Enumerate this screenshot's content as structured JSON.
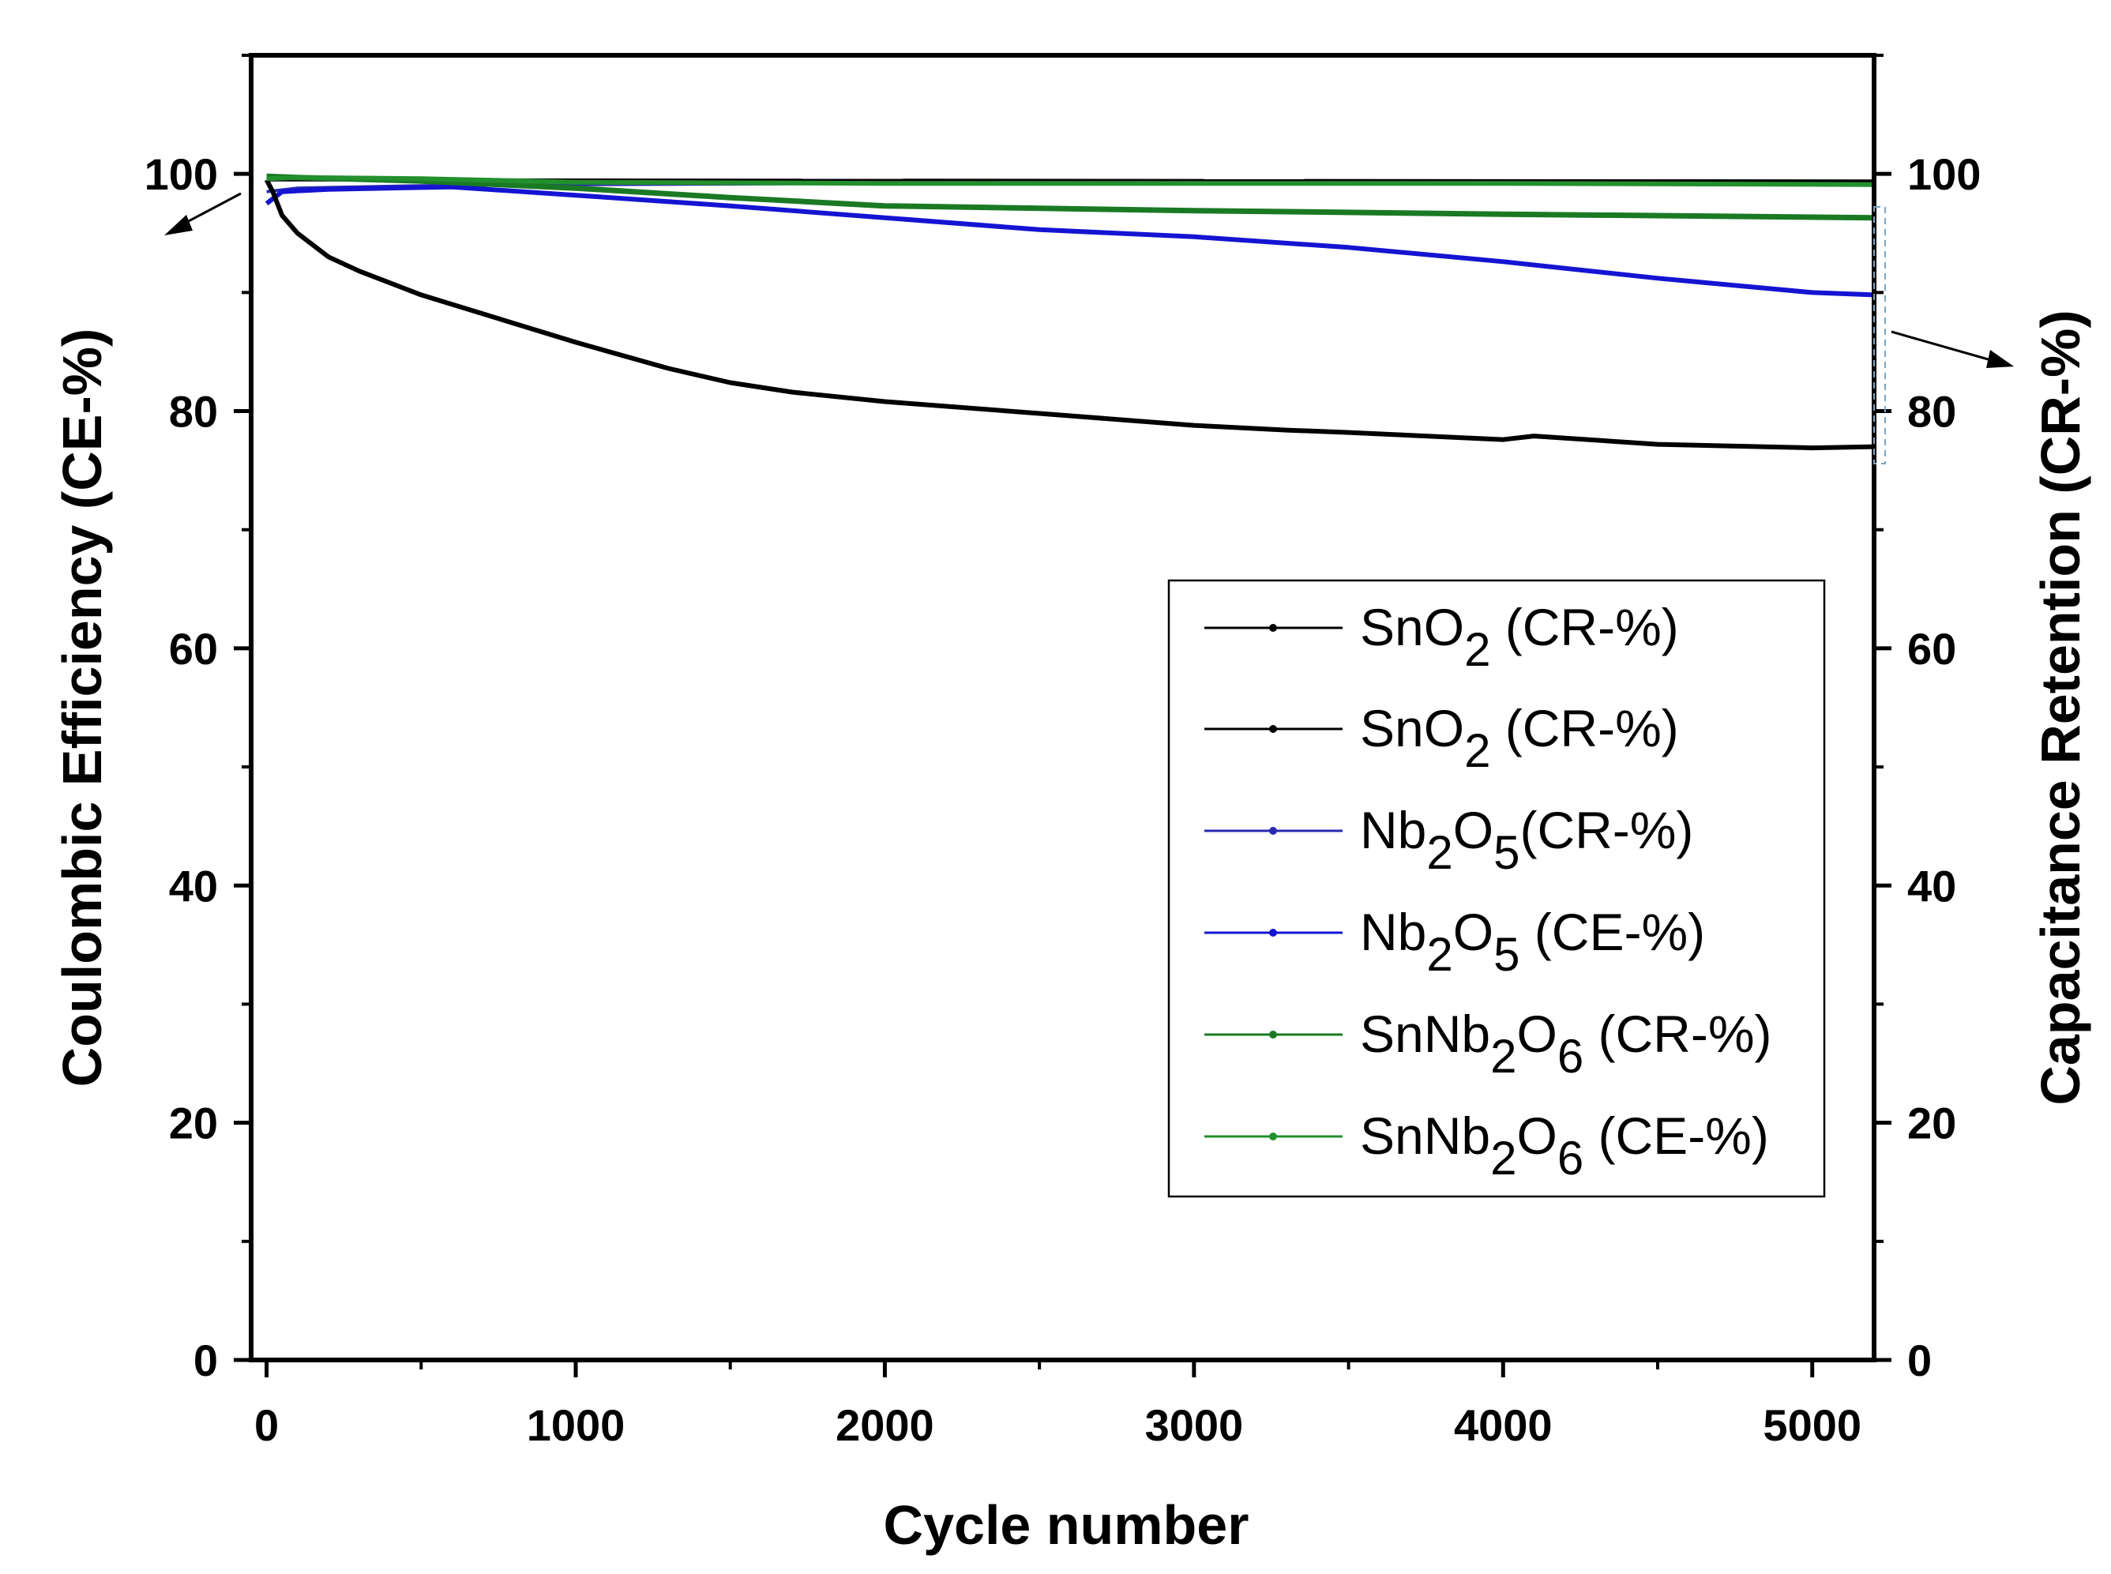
{
  "chart_data": {
    "type": "line",
    "xlabel": "Cycle number",
    "ylabel_left": "Coulombic Efficiency (CE-%)",
    "ylabel_right": "Capacitance Retention (CR-%)",
    "xlim": [
      -50,
      5200
    ],
    "ylim": [
      0,
      110
    ],
    "x_ticks": [
      0,
      1000,
      2000,
      3000,
      4000,
      5000
    ],
    "y_ticks": [
      0,
      20,
      40,
      60,
      80,
      100
    ],
    "legend_position": "center-right",
    "series": [
      {
        "name": "SnO2 (CR-%)",
        "legend": {
          "pre": "SnO",
          "sub1": "2",
          "mid": "",
          "sub2": "",
          "post": " (CR-%)"
        },
        "color": "#000000",
        "width": 4,
        "x": [
          0,
          5200
        ],
        "y": [
          99.5,
          99.4
        ]
      },
      {
        "name": "SnO2 (CR-%)",
        "legend": {
          "pre": "SnO",
          "sub1": "2",
          "mid": "",
          "sub2": "",
          "post": " (CR-%)"
        },
        "color": "#000000",
        "width": 6,
        "x": [
          0,
          20,
          50,
          100,
          200,
          300,
          500,
          700,
          1000,
          1300,
          1500,
          1700,
          2000,
          2500,
          3000,
          3300,
          3500,
          4000,
          4100,
          4500,
          5000,
          5200
        ],
        "y": [
          99.5,
          98.5,
          96.5,
          95,
          93,
          91.8,
          89.8,
          88.2,
          85.8,
          83.6,
          82.4,
          81.6,
          80.8,
          79.8,
          78.8,
          78.4,
          78.2,
          77.6,
          77.9,
          77.2,
          76.9,
          77
        ]
      },
      {
        "name": "Nb2O5(CR-%)",
        "legend": {
          "pre": "Nb",
          "sub1": "2",
          "mid": "O",
          "sub2": "5",
          "post": "(CR-%)"
        },
        "color": "#2a2ab0",
        "width": 4,
        "x": [
          0,
          100,
          500,
          1000,
          2000,
          3000,
          4000,
          5200
        ],
        "y": [
          98.5,
          98.8,
          99,
          99.1,
          99.2,
          99.3,
          99.3,
          99.3
        ]
      },
      {
        "name": "Nb2O5 (CE-%)",
        "legend": {
          "pre": "Nb",
          "sub1": "2",
          "mid": "O",
          "sub2": "5",
          "post": " (CE-%)"
        },
        "color": "#1414d2",
        "width": 6,
        "x": [
          0,
          50,
          200,
          600,
          1000,
          1500,
          2000,
          2500,
          3000,
          3500,
          4000,
          4500,
          5000,
          5200
        ],
        "y": [
          97.5,
          98.5,
          98.7,
          98.9,
          98.2,
          97.3,
          96.3,
          95.3,
          94.7,
          93.8,
          92.6,
          91.2,
          90,
          89.8
        ]
      },
      {
        "name": "SnNb2O6 (CR-%)",
        "legend": {
          "pre": "SnNb",
          "sub1": "2",
          "mid": "O",
          "sub2": "6",
          "post": " (CR-%)"
        },
        "color": "#1a7a24",
        "width": 7,
        "x": [
          0,
          100,
          500,
          1000,
          1500,
          2000,
          3000,
          4000,
          5200
        ],
        "y": [
          99.8,
          99.7,
          99.4,
          98.8,
          98,
          97.3,
          96.9,
          96.6,
          96.3
        ]
      },
      {
        "name": "SnNb2O6 (CE-%)",
        "legend": {
          "pre": "SnNb",
          "sub1": "2",
          "mid": "O",
          "sub2": "6",
          "post": " (CE-%)"
        },
        "color": "#23902e",
        "width": 6,
        "x": [
          0,
          100,
          500,
          1000,
          2000,
          3000,
          4000,
          5200
        ],
        "y": [
          99.6,
          99.7,
          99.6,
          99.3,
          99.2,
          99.2,
          99.2,
          99.1
        ]
      }
    ]
  }
}
